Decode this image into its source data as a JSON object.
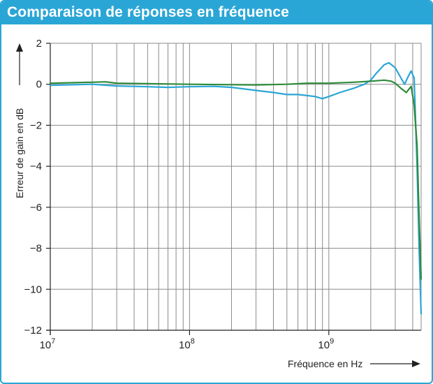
{
  "chart_data": {
    "type": "line",
    "title": "Comparaison de réponses en fréquence",
    "xlabel": "Fréquence en Hz",
    "ylabel": "Erreur de gain en dB",
    "x_scale": "log",
    "xlim": [
      10000000,
      4600000000
    ],
    "ylim": [
      -12,
      2
    ],
    "y_ticks": [
      2,
      0,
      -2,
      -4,
      -6,
      -8,
      -10,
      -12
    ],
    "y_tick_labels": [
      "2",
      "0",
      "−2",
      "−4",
      "−6",
      "−8",
      "−10",
      "−12"
    ],
    "x_ticks": [
      {
        "base": "10",
        "exp": "7",
        "value": 10000000
      },
      {
        "base": "10",
        "exp": "8",
        "value": 100000000
      },
      {
        "base": "10",
        "exp": "9",
        "value": 1000000000
      }
    ],
    "grid": true,
    "legend": "none",
    "series": [
      {
        "color": "#2aa6d6",
        "x": [
          10000000,
          15000000,
          20000000,
          30000000,
          50000000,
          70000000,
          100000000,
          150000000,
          200000000,
          300000000,
          400000000,
          500000000,
          600000000,
          700000000,
          800000000,
          900000000,
          1000000000,
          1200000000,
          1500000000,
          1800000000,
          2000000000,
          2200000000,
          2500000000,
          2700000000,
          3000000000,
          3300000000,
          3500000000,
          3700000000,
          3900000000,
          4100000000,
          4300000000,
          4450000000,
          4600000000
        ],
        "y": [
          -0.05,
          -0.02,
          0.0,
          -0.08,
          -0.12,
          -0.15,
          -0.12,
          -0.1,
          -0.15,
          -0.3,
          -0.4,
          -0.5,
          -0.5,
          -0.55,
          -0.6,
          -0.7,
          -0.6,
          -0.4,
          -0.2,
          0.0,
          0.2,
          0.55,
          0.95,
          1.05,
          0.8,
          0.3,
          0.0,
          0.35,
          0.65,
          0.3,
          -4.0,
          -8.0,
          -11.2
        ]
      },
      {
        "color": "#2e8b3a",
        "x": [
          10000000,
          15000000,
          20000000,
          25000000,
          30000000,
          50000000,
          100000000,
          200000000,
          300000000,
          500000000,
          700000000,
          1000000000,
          1500000000,
          2000000000,
          2500000000,
          2800000000,
          3000000000,
          3300000000,
          3600000000,
          3900000000,
          4100000000,
          4300000000,
          4450000000,
          4600000000
        ],
        "y": [
          0.05,
          0.08,
          0.1,
          0.12,
          0.05,
          0.03,
          0.0,
          -0.02,
          -0.03,
          0.0,
          0.05,
          0.05,
          0.1,
          0.15,
          0.2,
          0.15,
          0.05,
          -0.2,
          -0.4,
          -0.1,
          -1.0,
          -3.0,
          -6.5,
          -9.5
        ]
      }
    ]
  }
}
